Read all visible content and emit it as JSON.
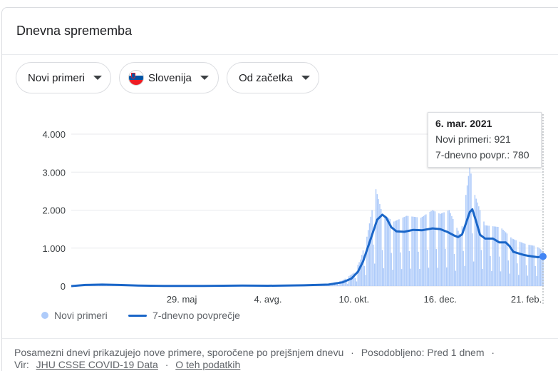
{
  "card": {
    "title": "Dnevna sprememba"
  },
  "filters": {
    "metric": "Novi primeri",
    "country": "Slovenija",
    "range": "Od začetka"
  },
  "tooltip": {
    "date": "6. mar. 2021",
    "cases_label": "Novi primeri",
    "cases_value": "921",
    "avg_label": "7-dnevno povpr.",
    "avg_value": "780"
  },
  "legend": {
    "bars": "Novi primeri",
    "line": "7-dnevno povprečje"
  },
  "footer": {
    "note": "Posamezni dnevi prikazujejo nove primere, sporočene po prejšnjem dnevu",
    "sep1": "·",
    "updated": "Posodobljeno: Pred 1 dnem",
    "sep2": "·",
    "source_label": "Vir:",
    "source_link": "JHU CSSE COVID-19 Data",
    "sep3": "·",
    "about_link": "O teh podatkih"
  },
  "colors": {
    "bars": "#aecbfa",
    "line": "#1a66c8",
    "grid": "#e8eaed"
  },
  "chart_data": {
    "type": "bar",
    "title": "",
    "ylim": [
      0,
      4000
    ],
    "y_ticks": [
      0,
      1000,
      2000,
      3000,
      4000
    ],
    "y_tick_labels": [
      "0",
      "1.000",
      "2.000",
      "3.000",
      "4.000"
    ],
    "x_tick_labels": [
      "29. maj",
      "4. avg.",
      "10. okt.",
      "16. dec.",
      "21. feb."
    ],
    "x_tick_dates": [
      "2020-05-29",
      "2020-08-04",
      "2020-10-10",
      "2020-12-16",
      "2021-02-21"
    ],
    "x_range": [
      "2020-03-04",
      "2021-03-06"
    ],
    "grid": true,
    "series": [
      {
        "name": "Novi primeri",
        "type": "bar",
        "note": "daily values with weekly rhythm; approximate readings",
        "points": [
          [
            "2020-03-04",
            0
          ],
          [
            "2020-03-20",
            40
          ],
          [
            "2020-04-01",
            50
          ],
          [
            "2020-04-15",
            30
          ],
          [
            "2020-05-01",
            8
          ],
          [
            "2020-05-29",
            2
          ],
          [
            "2020-06-30",
            10
          ],
          [
            "2020-07-15",
            15
          ],
          [
            "2020-08-04",
            10
          ],
          [
            "2020-09-01",
            25
          ],
          [
            "2020-09-20",
            60
          ],
          [
            "2020-10-01",
            150
          ],
          [
            "2020-10-10",
            350
          ],
          [
            "2020-10-15",
            700
          ],
          [
            "2020-10-20",
            1300
          ],
          [
            "2020-10-24",
            2000
          ],
          [
            "2020-10-27",
            2550
          ],
          [
            "2020-11-01",
            1900
          ],
          [
            "2020-11-10",
            1700
          ],
          [
            "2020-11-20",
            1850
          ],
          [
            "2020-12-01",
            1800
          ],
          [
            "2020-12-10",
            2000
          ],
          [
            "2020-12-16",
            1900
          ],
          [
            "2020-12-23",
            2000
          ],
          [
            "2021-01-01",
            1300
          ],
          [
            "2021-01-05",
            2400
          ],
          [
            "2021-01-08",
            3150
          ],
          [
            "2021-01-12",
            2400
          ],
          [
            "2021-01-20",
            1600
          ],
          [
            "2021-02-01",
            1550
          ],
          [
            "2021-02-10",
            1250
          ],
          [
            "2021-02-21",
            1100
          ],
          [
            "2021-03-01",
            1050
          ],
          [
            "2021-03-06",
            921
          ]
        ]
      },
      {
        "name": "7-dnevno povprečje",
        "type": "line",
        "points": [
          [
            "2020-03-04",
            0
          ],
          [
            "2020-03-15",
            30
          ],
          [
            "2020-03-28",
            40
          ],
          [
            "2020-04-10",
            30
          ],
          [
            "2020-04-25",
            15
          ],
          [
            "2020-05-15",
            5
          ],
          [
            "2020-06-15",
            5
          ],
          [
            "2020-07-15",
            15
          ],
          [
            "2020-08-04",
            10
          ],
          [
            "2020-09-01",
            20
          ],
          [
            "2020-09-20",
            40
          ],
          [
            "2020-10-01",
            100
          ],
          [
            "2020-10-08",
            200
          ],
          [
            "2020-10-13",
            380
          ],
          [
            "2020-10-17",
            650
          ],
          [
            "2020-10-21",
            1050
          ],
          [
            "2020-10-25",
            1450
          ],
          [
            "2020-10-28",
            1750
          ],
          [
            "2020-11-01",
            1880
          ],
          [
            "2020-11-04",
            1800
          ],
          [
            "2020-11-08",
            1550
          ],
          [
            "2020-11-12",
            1440
          ],
          [
            "2020-11-18",
            1430
          ],
          [
            "2020-11-25",
            1480
          ],
          [
            "2020-12-02",
            1470
          ],
          [
            "2020-12-10",
            1520
          ],
          [
            "2020-12-16",
            1500
          ],
          [
            "2020-12-22",
            1420
          ],
          [
            "2020-12-27",
            1330
          ],
          [
            "2020-12-30",
            1290
          ],
          [
            "2021-01-02",
            1360
          ],
          [
            "2021-01-05",
            1650
          ],
          [
            "2021-01-08",
            1950
          ],
          [
            "2021-01-10",
            2020
          ],
          [
            "2021-01-13",
            1700
          ],
          [
            "2021-01-16",
            1350
          ],
          [
            "2021-01-20",
            1250
          ],
          [
            "2021-01-26",
            1250
          ],
          [
            "2021-01-31",
            1150
          ],
          [
            "2021-02-05",
            1150
          ],
          [
            "2021-02-08",
            1050
          ],
          [
            "2021-02-11",
            900
          ],
          [
            "2021-02-13",
            880
          ],
          [
            "2021-02-16",
            850
          ],
          [
            "2021-02-19",
            820
          ],
          [
            "2021-02-22",
            800
          ],
          [
            "2021-02-26",
            780
          ],
          [
            "2021-03-02",
            760
          ],
          [
            "2021-03-06",
            780
          ]
        ]
      }
    ]
  }
}
